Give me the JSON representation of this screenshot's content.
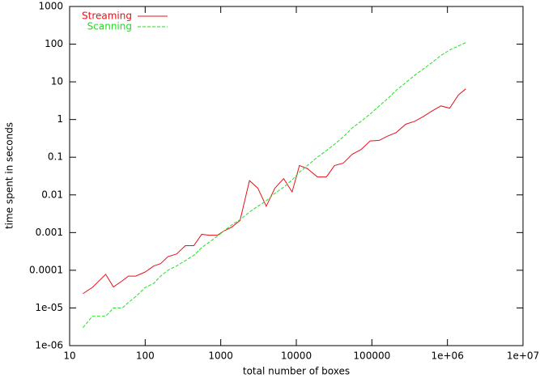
{
  "chart_data": {
    "type": "line",
    "x_label": "total number of boxes",
    "y_label": "time spent in seconds",
    "x_log": true,
    "y_log": true,
    "grid": false,
    "legend": "top-left",
    "x": [
      15,
      20,
      30,
      38,
      50,
      60,
      75,
      100,
      130,
      160,
      200,
      260,
      340,
      440,
      560,
      700,
      900,
      1100,
      1400,
      1800,
      2400,
      3100,
      4000,
      5200,
      6800,
      8800,
      11000,
      14000,
      19000,
      25000,
      32000,
      42000,
      55000,
      72000,
      95000,
      125000,
      160000,
      210000,
      280000,
      370000,
      480000,
      630000,
      820000,
      1070000,
      1400000,
      1750000
    ],
    "series": [
      {
        "name": "Streaming",
        "color": "#e8101a",
        "dash": false,
        "values": [
          2.4e-05,
          3.5e-05,
          7.8e-05,
          3.6e-05,
          5.3e-05,
          7e-05,
          7e-05,
          9e-05,
          0.00013,
          0.00015,
          0.00023,
          0.00027,
          0.00045,
          0.00045,
          0.0009,
          0.00085,
          0.00085,
          0.0011,
          0.0014,
          0.0021,
          0.024,
          0.015,
          0.005,
          0.015,
          0.027,
          0.012,
          0.06,
          0.05,
          0.03,
          0.03,
          0.06,
          0.07,
          0.12,
          0.16,
          0.27,
          0.28,
          0.36,
          0.45,
          0.75,
          0.9,
          1.2,
          1.7,
          2.3,
          2.0,
          4.5,
          6.5
        ]
      },
      {
        "name": "Scanning",
        "color": "#22dd22",
        "dash": true,
        "values": [
          3e-06,
          6e-06,
          6e-06,
          1e-05,
          1e-05,
          1.4e-05,
          2e-05,
          3.5e-05,
          4.5e-05,
          7e-05,
          0.0001,
          0.00013,
          0.00018,
          0.00025,
          0.0004,
          0.00055,
          0.0008,
          0.0011,
          0.0016,
          0.0022,
          0.0035,
          0.005,
          0.007,
          0.011,
          0.016,
          0.025,
          0.04,
          0.06,
          0.1,
          0.15,
          0.22,
          0.35,
          0.6,
          0.9,
          1.4,
          2.3,
          3.5,
          6,
          9.5,
          15,
          22,
          33,
          50,
          70,
          90,
          110
        ]
      }
    ],
    "xlim": [
      10,
      10000000
    ],
    "xticks": [
      10,
      100,
      1000,
      10000,
      100000,
      {
        "value": 1000000,
        "label": "1e+06"
      },
      {
        "value": 10000000,
        "label": "1e+07"
      }
    ],
    "ylim": [
      1e-06,
      1000
    ],
    "yticks": [
      {
        "value": 1e-06,
        "label": "1e-06"
      },
      {
        "value": 1e-05,
        "label": "1e-05"
      },
      0.0001,
      0.001,
      0.01,
      0.1,
      1,
      10,
      100,
      1000
    ]
  }
}
